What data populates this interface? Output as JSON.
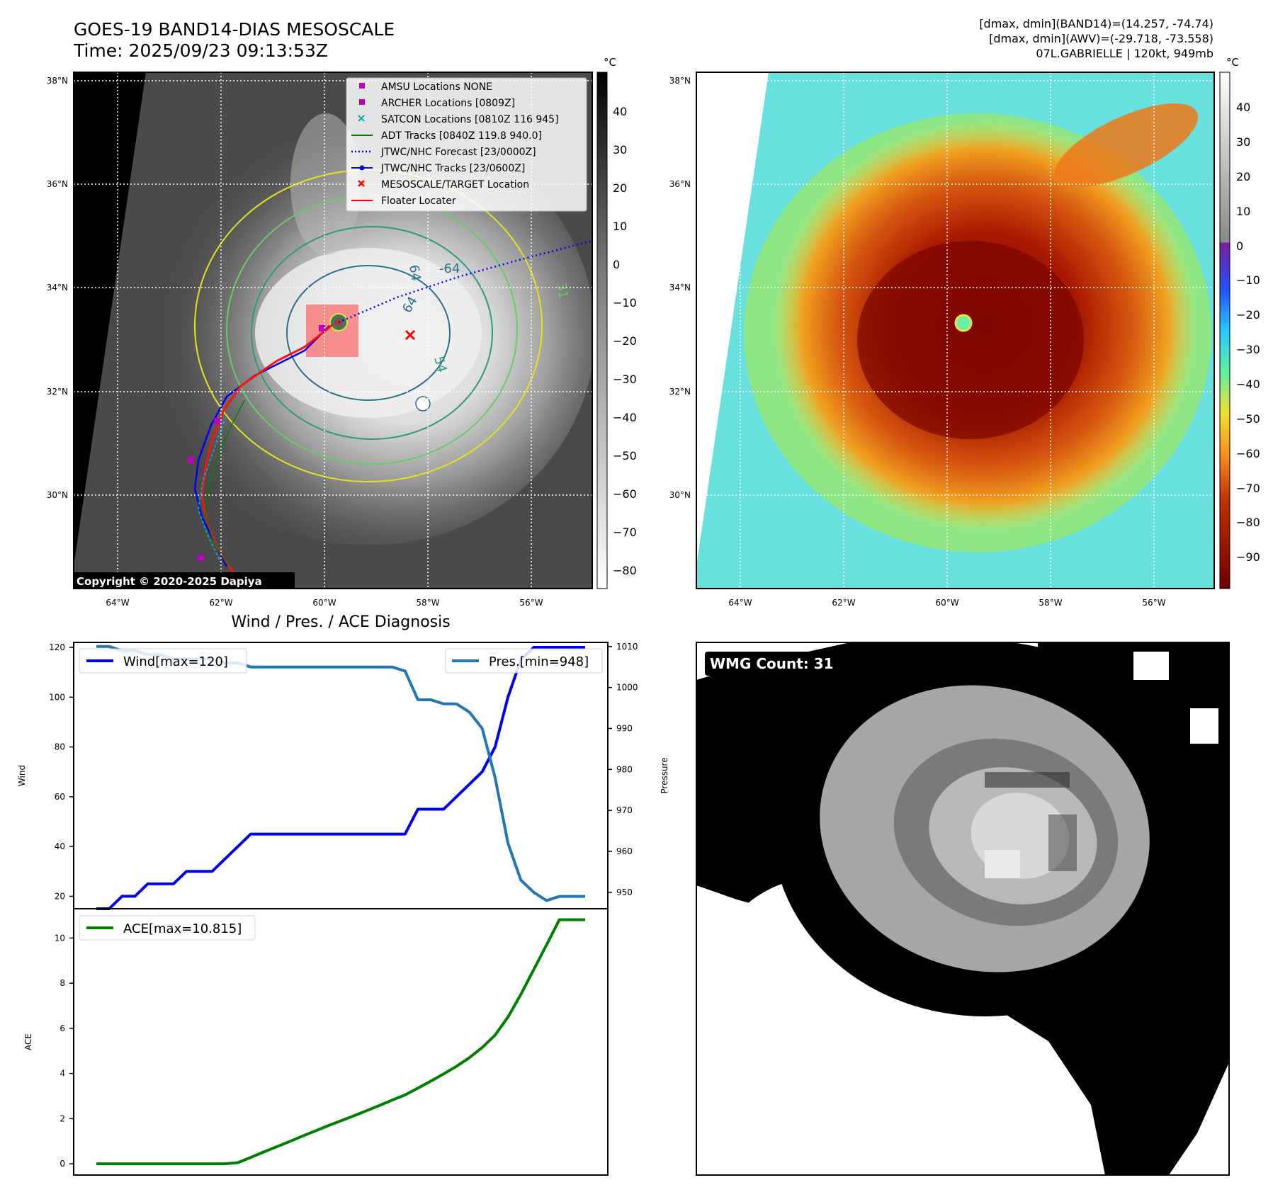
{
  "header": {
    "title_line1": "GOES-19 BAND14-DIAS MESOSCALE",
    "title_line2": "Time: 2025/09/23 09:13:53Z",
    "right_line1": "[dmax, dmin](BAND14)=(14.257, -74.74)",
    "right_line2": "[dmax, dmin](AWV)=(-29.718, -73.558)",
    "right_line3": "07L.GABRIELLE | 120kt, 949mb"
  },
  "map": {
    "lat_labels": [
      "38°N",
      "36°N",
      "34°N",
      "32°N",
      "30°N"
    ],
    "lon_labels": [
      "64°W",
      "62°W",
      "60°W",
      "58°W",
      "56°W"
    ],
    "copyright": "Copyright © 2020-2025 Dapiya",
    "contour_labels": [
      "64",
      "-64",
      "64",
      "54",
      "31"
    ]
  },
  "legend": {
    "items": [
      {
        "label": "AMSU Locations NONE",
        "color": "#c000c0",
        "marker": "square"
      },
      {
        "label": "ARCHER Locations [0809Z]",
        "color": "#c000c0",
        "marker": "square"
      },
      {
        "label": "SATCON Locations [0810Z 116 945]",
        "color": "#00b0b0",
        "marker": "x"
      },
      {
        "label": "ADT Tracks [0840Z 119.8 940.0]",
        "color": "#008000",
        "marker": "line"
      },
      {
        "label": "JTWC/NHC Forecast [23/0000Z]",
        "color": "#0000ff",
        "marker": "dotted"
      },
      {
        "label": "JTWC/NHC Tracks [23/0600Z]",
        "color": "#0000ff",
        "marker": "line-dot"
      },
      {
        "label": "MESOSCALE/TARGET Location",
        "color": "#ff0000",
        "marker": "x"
      },
      {
        "label": "Floater Locater",
        "color": "#ff0000",
        "marker": "line"
      }
    ]
  },
  "colorbar_gray": {
    "unit": "°C",
    "ticks": [
      "40",
      "30",
      "20",
      "10",
      "0",
      "−10",
      "−20",
      "−30",
      "−40",
      "−50",
      "−60",
      "−70",
      "−80"
    ]
  },
  "colorbar_color": {
    "unit": "°C",
    "ticks": [
      "40",
      "30",
      "20",
      "10",
      "0",
      "−10",
      "−20",
      "−30",
      "−40",
      "−50",
      "−60",
      "−70",
      "−80",
      "−90"
    ]
  },
  "wmg": {
    "label": "WMG Count: 31"
  },
  "chart_data": [
    {
      "type": "line",
      "title": "Wind / Pres. / ACE Diagnosis",
      "ylabel": "Wind",
      "ylabel_right": "Pressure",
      "ylim": [
        15,
        122
      ],
      "ylim_right": [
        946,
        1011
      ],
      "yticks": [
        20,
        40,
        60,
        80,
        100,
        120
      ],
      "yticks_right": [
        950,
        960,
        970,
        980,
        990,
        1000,
        1010
      ],
      "x": [
        0,
        1,
        2,
        3,
        4,
        5,
        6,
        7,
        8,
        9,
        10,
        11,
        12,
        13,
        14,
        15,
        16,
        17,
        18,
        19,
        20,
        21,
        22,
        23,
        24,
        25,
        26,
        27,
        28,
        29,
        30,
        31,
        32,
        33,
        34,
        35,
        36,
        37,
        38
      ],
      "series": [
        {
          "name": "Wind[max=120]",
          "axis": "left",
          "color": "#0000ee",
          "values": [
            15,
            15,
            20,
            20,
            25,
            25,
            25,
            30,
            30,
            30,
            35,
            40,
            45,
            45,
            45,
            45,
            45,
            45,
            45,
            45,
            45,
            45,
            45,
            45,
            45,
            55,
            55,
            55,
            60,
            65,
            70,
            80,
            100,
            115,
            120,
            120,
            120,
            120,
            120
          ]
        },
        {
          "name": "Pres.[min=948]",
          "axis": "right",
          "color": "#1f77b4",
          "values": [
            1010,
            1010,
            1009,
            1009,
            1008,
            1008,
            1007,
            1007,
            1007,
            1007,
            1006,
            1006,
            1005,
            1005,
            1005,
            1005,
            1005,
            1005,
            1005,
            1005,
            1005,
            1005,
            1005,
            1005,
            1004,
            997,
            997,
            996,
            996,
            994,
            990,
            978,
            962,
            953,
            950,
            948,
            949,
            949,
            949
          ]
        }
      ]
    },
    {
      "type": "line",
      "ylabel": "ACE",
      "ylim": [
        -0.5,
        11.3
      ],
      "yticks": [
        0,
        2,
        4,
        6,
        8,
        10
      ],
      "x": [
        0,
        1,
        2,
        3,
        4,
        5,
        6,
        7,
        8,
        9,
        10,
        11,
        12,
        13,
        14,
        15,
        16,
        17,
        18,
        19,
        20,
        21,
        22,
        23,
        24,
        25,
        26,
        27,
        28,
        29,
        30,
        31,
        32,
        33,
        34,
        35,
        36,
        37,
        38
      ],
      "series": [
        {
          "name": "ACE[max=10.815]",
          "color": "#008000",
          "values": [
            0,
            0,
            0,
            0,
            0,
            0,
            0,
            0,
            0,
            0,
            0,
            0.05,
            0.28,
            0.52,
            0.75,
            0.98,
            1.22,
            1.45,
            1.68,
            1.9,
            2.12,
            2.35,
            2.58,
            2.82,
            3.05,
            3.35,
            3.66,
            3.98,
            4.32,
            4.7,
            5.15,
            5.7,
            6.5,
            7.5,
            8.6,
            9.7,
            10.815,
            10.815,
            10.815
          ]
        }
      ]
    }
  ]
}
